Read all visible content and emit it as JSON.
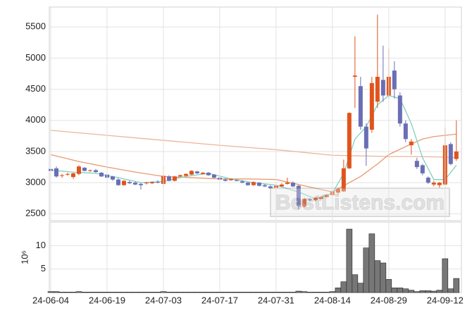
{
  "chart_data": [
    {
      "type": "candlestick",
      "up_color": "#e0541c",
      "down_color": "#6a6eb4",
      "open": [
        3220,
        3230,
        3110,
        3130,
        3090,
        3140,
        3240,
        3190,
        3200,
        3160,
        3130,
        3100,
        3050,
        2960,
        3010,
        3000,
        2980,
        2990,
        2990,
        3010,
        2980,
        3100,
        3030,
        3100,
        3110,
        3130,
        3180,
        3140,
        3160,
        3130,
        3080,
        3050,
        3040,
        3040,
        3020,
        3000,
        2960,
        3000,
        2960,
        2940,
        2920,
        2940,
        2980,
        3000,
        2950,
        2620,
        2730,
        2720,
        2740,
        2770,
        2800,
        2840,
        2860,
        3230,
        4700,
        4550,
        3900,
        3850,
        4300,
        4650,
        4400,
        4800,
        4400,
        3950,
        3600,
        3350,
        3280,
        3080,
        2970,
        2960,
        2970,
        3620,
        3380
      ],
      "high": [
        3250,
        3260,
        3140,
        3160,
        3160,
        3280,
        3250,
        3210,
        3220,
        3170,
        3140,
        3110,
        3070,
        3040,
        3030,
        3020,
        3000,
        3010,
        3020,
        3040,
        3270,
        3120,
        3110,
        3130,
        3150,
        3200,
        3190,
        3170,
        3170,
        3140,
        3090,
        3070,
        3070,
        3050,
        3040,
        3010,
        3020,
        3010,
        2980,
        2960,
        2960,
        2990,
        3080,
        3020,
        2960,
        2760,
        2750,
        2780,
        2790,
        2820,
        2870,
        2920,
        3370,
        4130,
        5350,
        4700,
        3950,
        4700,
        5700,
        5200,
        5150,
        4950,
        4450,
        4000,
        3700,
        3400,
        3300,
        3100,
        3030,
        3010,
        3880,
        3650,
        4000
      ],
      "low": [
        3170,
        3080,
        3080,
        3110,
        3060,
        3120,
        3180,
        3170,
        3160,
        3090,
        3070,
        3030,
        2950,
        2950,
        2980,
        2960,
        2890,
        2970,
        2980,
        2990,
        2920,
        3020,
        3020,
        3090,
        3100,
        3120,
        3140,
        3130,
        3110,
        3070,
        3040,
        3020,
        3030,
        3020,
        2990,
        2950,
        2950,
        2940,
        2930,
        2900,
        2910,
        2930,
        2970,
        2930,
        2570,
        2600,
        2700,
        2700,
        2730,
        2760,
        2790,
        2820,
        2850,
        3220,
        4200,
        3850,
        3270,
        3800,
        4200,
        4300,
        4350,
        4350,
        3900,
        3650,
        3450,
        3220,
        3120,
        2980,
        2940,
        2920,
        2950,
        3280,
        3350
      ],
      "close": [
        3190,
        3100,
        3120,
        3140,
        3150,
        3260,
        3190,
        3200,
        3170,
        3100,
        3080,
        3050,
        2960,
        3030,
        2990,
        2970,
        2960,
        3000,
        3010,
        3000,
        3110,
        3030,
        3100,
        3120,
        3140,
        3190,
        3150,
        3160,
        3120,
        3080,
        3050,
        3030,
        3060,
        3030,
        3000,
        2960,
        3010,
        2950,
        2940,
        2910,
        2950,
        2970,
        3000,
        2940,
        2620,
        2740,
        2720,
        2760,
        2770,
        2800,
        2860,
        2900,
        3230,
        4120,
        4720,
        3900,
        3550,
        4600,
        4700,
        4400,
        4700,
        4500,
        3950,
        3700,
        3660,
        3250,
        3150,
        3000,
        3000,
        3000,
        3600,
        3300,
        3500
      ],
      "lines": [
        {
          "color": "#ecb49a",
          "x": [
            0,
            10,
            20,
            30,
            40,
            50,
            55,
            60,
            65,
            70,
            72
          ],
          "values": [
            3840,
            3760,
            3680,
            3600,
            3530,
            3440,
            3430,
            3420,
            3420,
            3410,
            3400
          ]
        },
        {
          "color": "#e89a70",
          "x": [
            0,
            5,
            10,
            15,
            20,
            25,
            30,
            35,
            40,
            45,
            50,
            52,
            55,
            58,
            60,
            63,
            66,
            68,
            70,
            72
          ],
          "values": [
            3450,
            3340,
            3250,
            3170,
            3100,
            3080,
            3060,
            3060,
            3050,
            2950,
            2850,
            2950,
            3100,
            3300,
            3450,
            3580,
            3700,
            3740,
            3760,
            3780
          ]
        },
        {
          "color": "#7fcfc0",
          "x": [
            0,
            4,
            8,
            12,
            16,
            20,
            24,
            28,
            32,
            36,
            40,
            44,
            47,
            50,
            52,
            54,
            56,
            58,
            60,
            62,
            64,
            66,
            68,
            70,
            72
          ],
          "values": [
            3200,
            3170,
            3150,
            3080,
            3000,
            3020,
            3100,
            3150,
            3060,
            3000,
            2960,
            2850,
            2740,
            2830,
            3150,
            3700,
            3900,
            4250,
            4400,
            4350,
            3950,
            3400,
            3050,
            3050,
            3280
          ]
        }
      ],
      "xlim": [
        -0.25,
        72.9
      ],
      "ylim": [
        2390,
        5820
      ],
      "yticks": [
        2500,
        3000,
        3500,
        4000,
        4500,
        5000,
        5500
      ],
      "watermark": "BestListens.com",
      "grid": true
    },
    {
      "type": "bar",
      "color": "#777777",
      "ylabel": "10⁶",
      "categories": [
        "24-06-04",
        null,
        null,
        null,
        null,
        null,
        null,
        null,
        null,
        null,
        "24-06-19",
        null,
        null,
        null,
        null,
        null,
        null,
        null,
        null,
        null,
        "24-07-03",
        null,
        null,
        null,
        null,
        null,
        null,
        null,
        null,
        null,
        "24-07-17",
        null,
        null,
        null,
        null,
        null,
        null,
        null,
        null,
        null,
        "24-07-31",
        null,
        null,
        null,
        null,
        null,
        null,
        null,
        null,
        null,
        "24-08-14",
        null,
        null,
        null,
        null,
        null,
        null,
        null,
        null,
        null,
        "24-08-29",
        null,
        null,
        null,
        null,
        null,
        null,
        null,
        null,
        null,
        "24-09-12",
        null,
        null
      ],
      "values": [
        0.2,
        0.2,
        0.1,
        0.1,
        0.1,
        0.2,
        0.1,
        0.1,
        0.1,
        0.1,
        0.1,
        0.1,
        0.1,
        0.1,
        0.1,
        0.1,
        0.1,
        0.1,
        0.1,
        0.1,
        0.2,
        0.1,
        0.1,
        0.1,
        0.1,
        0.1,
        0.1,
        0.1,
        0.1,
        0.1,
        0.1,
        0.1,
        0.1,
        0.1,
        0.1,
        0.1,
        0.1,
        0.1,
        0.1,
        0.1,
        0.1,
        0.1,
        0.1,
        0.1,
        0.3,
        0.2,
        0.1,
        0.1,
        0.1,
        0.1,
        0.2,
        1.0,
        2.3,
        13.5,
        3.8,
        2.0,
        9.5,
        12.5,
        6.8,
        6.3,
        2.8,
        1.0,
        1.0,
        0.8,
        0.5,
        0.2,
        0.4,
        0.4,
        0.3,
        0.5,
        7.2,
        0.8,
        3.0
      ],
      "xlim": [
        -0.25,
        72.9
      ],
      "ylim": [
        0,
        15
      ],
      "yticks": [
        5,
        10
      ],
      "grid": true
    }
  ]
}
